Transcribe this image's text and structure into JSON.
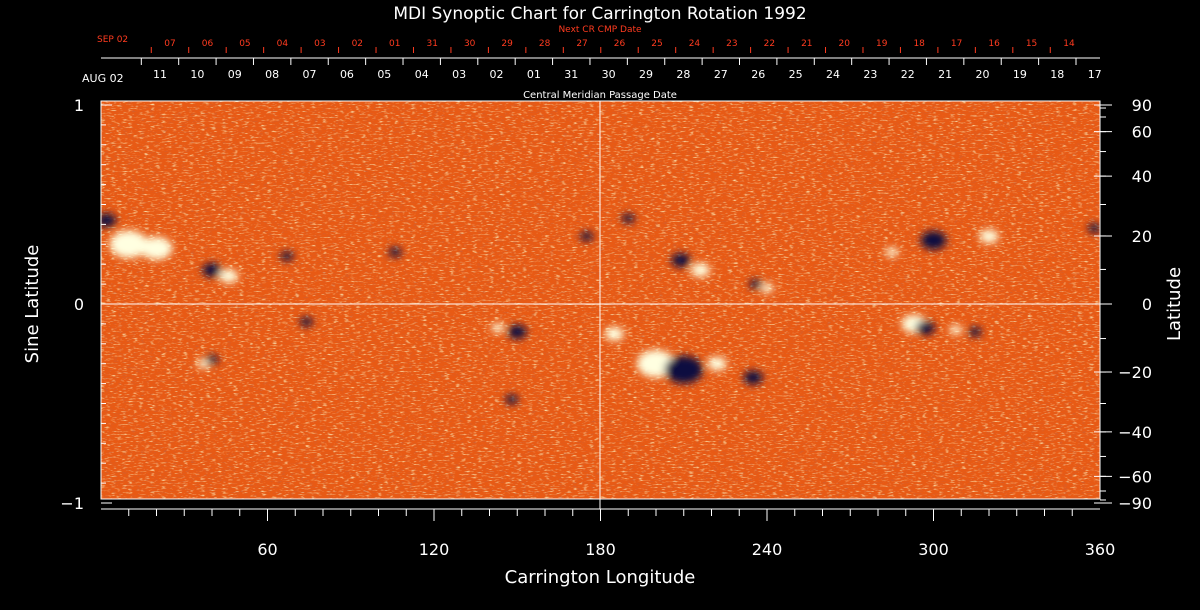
{
  "chart_data": {
    "type": "heatmap",
    "title": "MDI Synoptic Chart for Carrington Rotation 1992",
    "xlabel": "Carrington Longitude",
    "ylabel_left": "Sine Latitude",
    "ylabel_right": "Latitude",
    "xlim": [
      0,
      360
    ],
    "ylim": [
      -1,
      1
    ],
    "x_ticks": [
      60,
      120,
      180,
      240,
      300,
      360
    ],
    "y_ticks_left": [
      1,
      0,
      -1
    ],
    "y_tick_labels_left": [
      "1",
      "0",
      "−1"
    ],
    "latitude_ticks": [
      90,
      60,
      40,
      20,
      0,
      -20,
      -40,
      -60,
      -90
    ],
    "latitude_tick_labels": [
      "90",
      "60",
      "40",
      "20",
      "0",
      "−20",
      "−40",
      "−60",
      "−90"
    ],
    "cmp_axis": {
      "label": "Central Meridian Passage Date",
      "start_label": "AUG 02",
      "dates": [
        "11",
        "10",
        "09",
        "08",
        "07",
        "06",
        "05",
        "04",
        "03",
        "02",
        "01",
        "31",
        "30",
        "29",
        "28",
        "27",
        "26",
        "25",
        "24",
        "23",
        "22",
        "21",
        "20",
        "19",
        "18",
        "17"
      ]
    },
    "next_cr_axis": {
      "label": "Next CR CMP Date",
      "start_label": "SEP 02",
      "dates": [
        "07",
        "06",
        "05",
        "04",
        "03",
        "02",
        "01",
        "31",
        "30",
        "29",
        "28",
        "27",
        "26",
        "25",
        "24",
        "23",
        "22",
        "21",
        "20",
        "19",
        "18",
        "17",
        "16",
        "15",
        "14"
      ]
    },
    "colors": {
      "background": "#e85a14",
      "positive": "#ffffe0",
      "negative": "#0a0a40",
      "next_cr": "#ff3b1f"
    },
    "regions": [
      {
        "lon": 10,
        "sinlat": 0.3,
        "polarity": "positive",
        "size": 6
      },
      {
        "lon": 20,
        "sinlat": 0.28,
        "polarity": "positive",
        "size": 5
      },
      {
        "lon": 2,
        "sinlat": 0.42,
        "polarity": "negative",
        "size": 3
      },
      {
        "lon": 40,
        "sinlat": 0.17,
        "polarity": "negative",
        "size": 3
      },
      {
        "lon": 46,
        "sinlat": 0.14,
        "polarity": "positive",
        "size": 3
      },
      {
        "lon": 67,
        "sinlat": 0.24,
        "polarity": "negative",
        "size": 2
      },
      {
        "lon": 74,
        "sinlat": -0.09,
        "polarity": "negative",
        "size": 2
      },
      {
        "lon": 37,
        "sinlat": -0.3,
        "polarity": "positive",
        "size": 2
      },
      {
        "lon": 40,
        "sinlat": -0.28,
        "polarity": "negative",
        "size": 2
      },
      {
        "lon": 106,
        "sinlat": 0.26,
        "polarity": "negative",
        "size": 2
      },
      {
        "lon": 150,
        "sinlat": -0.14,
        "polarity": "negative",
        "size": 3
      },
      {
        "lon": 143,
        "sinlat": -0.12,
        "polarity": "positive",
        "size": 2
      },
      {
        "lon": 148,
        "sinlat": -0.48,
        "polarity": "negative",
        "size": 2
      },
      {
        "lon": 175,
        "sinlat": 0.34,
        "polarity": "negative",
        "size": 2
      },
      {
        "lon": 185,
        "sinlat": -0.15,
        "polarity": "positive",
        "size": 3
      },
      {
        "lon": 200,
        "sinlat": -0.3,
        "polarity": "positive",
        "size": 6
      },
      {
        "lon": 210,
        "sinlat": -0.33,
        "polarity": "negative",
        "size": 6
      },
      {
        "lon": 222,
        "sinlat": -0.3,
        "polarity": "positive",
        "size": 3
      },
      {
        "lon": 235,
        "sinlat": -0.37,
        "polarity": "negative",
        "size": 3
      },
      {
        "lon": 209,
        "sinlat": 0.22,
        "polarity": "negative",
        "size": 3
      },
      {
        "lon": 216,
        "sinlat": 0.17,
        "polarity": "positive",
        "size": 3
      },
      {
        "lon": 240,
        "sinlat": 0.08,
        "polarity": "positive",
        "size": 2
      },
      {
        "lon": 236,
        "sinlat": 0.1,
        "polarity": "negative",
        "size": 2
      },
      {
        "lon": 293,
        "sinlat": -0.1,
        "polarity": "positive",
        "size": 4
      },
      {
        "lon": 297,
        "sinlat": -0.12,
        "polarity": "negative",
        "size": 3
      },
      {
        "lon": 285,
        "sinlat": 0.26,
        "polarity": "positive",
        "size": 2
      },
      {
        "lon": 300,
        "sinlat": 0.32,
        "polarity": "negative",
        "size": 4
      },
      {
        "lon": 320,
        "sinlat": 0.34,
        "polarity": "positive",
        "size": 3
      },
      {
        "lon": 315,
        "sinlat": -0.14,
        "polarity": "negative",
        "size": 2
      },
      {
        "lon": 308,
        "sinlat": -0.13,
        "polarity": "positive",
        "size": 2
      },
      {
        "lon": 358,
        "sinlat": 0.38,
        "polarity": "negative",
        "size": 2
      },
      {
        "lon": 190,
        "sinlat": 0.43,
        "polarity": "negative",
        "size": 2
      }
    ]
  }
}
